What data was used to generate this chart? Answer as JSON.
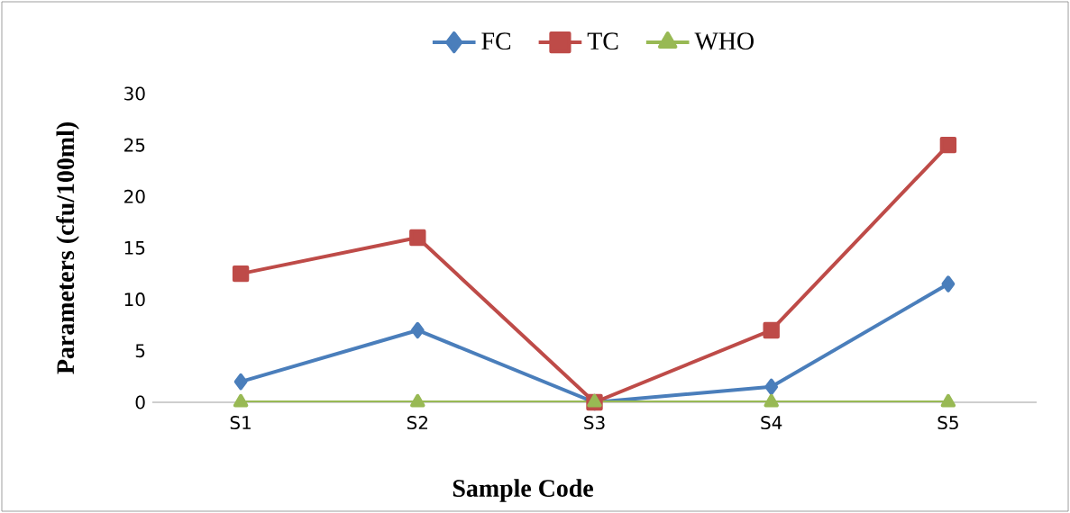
{
  "chart_data": {
    "type": "line",
    "xlabel": "Sample Code",
    "ylabel": "Parameters (cfu/100ml)",
    "categories": [
      "S1",
      "S2",
      "S3",
      "S4",
      "S5"
    ],
    "series": [
      {
        "name": "FC",
        "color": "#4a7ebb",
        "marker": "diamond",
        "values": [
          2,
          7,
          0,
          1.5,
          11.5
        ]
      },
      {
        "name": "TC",
        "color": "#be4b48",
        "marker": "square",
        "values": [
          12.5,
          16,
          0,
          7,
          25
        ]
      },
      {
        "name": "WHO",
        "color": "#98b954",
        "marker": "triangle",
        "values": [
          0,
          0,
          0,
          0,
          0
        ]
      }
    ],
    "ylim": [
      0,
      30
    ],
    "yticks": [
      0,
      5,
      10,
      15,
      20,
      25,
      30
    ],
    "grid": false,
    "legend": "top"
  }
}
